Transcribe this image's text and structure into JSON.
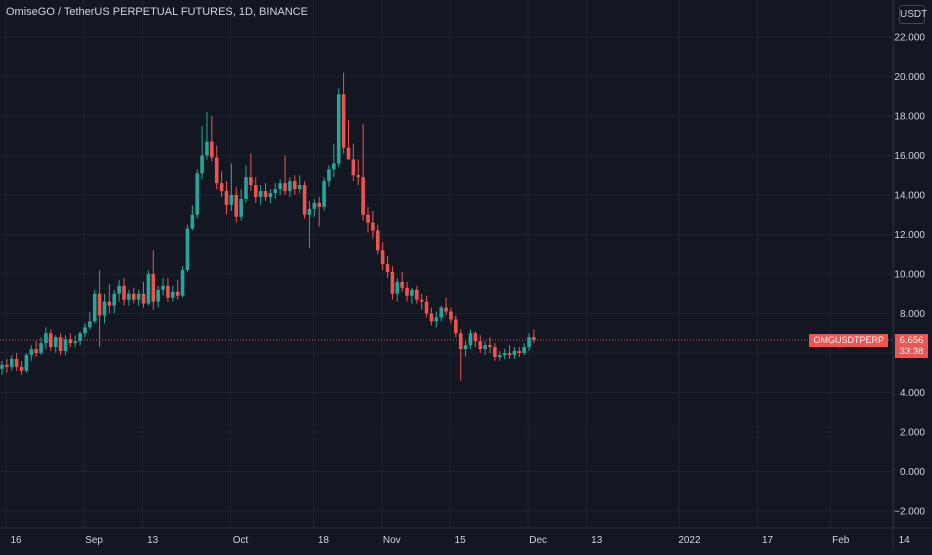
{
  "header": {
    "title": "OmiseGO / TetherUS PERPETUAL FUTURES, 1D, BINANCE",
    "currency": "USDT"
  },
  "price_tag": {
    "symbol": "OMGUSDTPERP",
    "last_price": "6.656",
    "countdown": "33:38"
  },
  "colors": {
    "background": "#131722",
    "grid": "#1f2330",
    "up": "#26a69a",
    "down": "#ef5350",
    "text": "#d1d4dc",
    "price_line": "#ef5350"
  },
  "chart_data": {
    "type": "candlestick",
    "title": "OmiseGO / TetherUS PERPETUAL FUTURES, 1D, BINANCE",
    "ylim": [
      -2.8,
      23.5
    ],
    "y_ticks": [
      22,
      20,
      18,
      16,
      14,
      12,
      10,
      8,
      6,
      4,
      2,
      0,
      -2
    ],
    "y_tick_labels": [
      "22.000",
      "20.000",
      "18.000",
      "16.000",
      "14.000",
      "12.000",
      "10.000",
      "8.000",
      "6.000",
      "4.000",
      "2.000",
      "0.000",
      "−2.000"
    ],
    "x_ticks": [
      {
        "label": "16",
        "day": 0
      },
      {
        "label": "Sep",
        "day": 16
      },
      {
        "label": "13",
        "day": 28
      },
      {
        "label": "Oct",
        "day": 46
      },
      {
        "label": "18",
        "day": 63
      },
      {
        "label": "Nov",
        "day": 77
      },
      {
        "label": "15",
        "day": 91
      },
      {
        "label": "Dec",
        "day": 107
      },
      {
        "label": "13",
        "day": 119
      },
      {
        "label": "2022",
        "day": 138
      },
      {
        "label": "17",
        "day": 154
      },
      {
        "label": "Feb",
        "day": 169
      },
      {
        "label": "14",
        "day": 182
      }
    ],
    "last_price": 6.656,
    "candles": [
      {
        "o": 5.2,
        "h": 5.6,
        "l": 4.9,
        "c": 5.4
      },
      {
        "o": 5.4,
        "h": 5.7,
        "l": 5.0,
        "c": 5.3
      },
      {
        "o": 5.3,
        "h": 5.9,
        "l": 5.1,
        "c": 5.7
      },
      {
        "o": 5.7,
        "h": 6.0,
        "l": 5.1,
        "c": 5.3
      },
      {
        "o": 5.3,
        "h": 5.6,
        "l": 4.9,
        "c": 5.1
      },
      {
        "o": 5.1,
        "h": 6.0,
        "l": 5.0,
        "c": 5.9
      },
      {
        "o": 5.9,
        "h": 6.4,
        "l": 5.6,
        "c": 6.2
      },
      {
        "o": 6.2,
        "h": 6.6,
        "l": 5.8,
        "c": 6.0
      },
      {
        "o": 6.0,
        "h": 6.8,
        "l": 5.9,
        "c": 6.5
      },
      {
        "o": 6.5,
        "h": 7.3,
        "l": 6.2,
        "c": 7.0
      },
      {
        "o": 7.0,
        "h": 7.2,
        "l": 6.1,
        "c": 6.3
      },
      {
        "o": 6.3,
        "h": 6.9,
        "l": 6.0,
        "c": 6.8
      },
      {
        "o": 6.8,
        "h": 7.0,
        "l": 5.9,
        "c": 6.1
      },
      {
        "o": 6.1,
        "h": 6.9,
        "l": 5.9,
        "c": 6.7
      },
      {
        "o": 6.7,
        "h": 7.0,
        "l": 6.3,
        "c": 6.5
      },
      {
        "o": 6.5,
        "h": 6.9,
        "l": 6.3,
        "c": 6.6
      },
      {
        "o": 6.6,
        "h": 7.1,
        "l": 6.4,
        "c": 7.0
      },
      {
        "o": 7.0,
        "h": 7.5,
        "l": 6.8,
        "c": 7.3
      },
      {
        "o": 7.3,
        "h": 8.1,
        "l": 7.2,
        "c": 7.6
      },
      {
        "o": 7.6,
        "h": 9.2,
        "l": 7.5,
        "c": 9.0
      },
      {
        "o": 9.0,
        "h": 10.2,
        "l": 6.3,
        "c": 7.9
      },
      {
        "o": 7.9,
        "h": 9.0,
        "l": 7.5,
        "c": 8.6
      },
      {
        "o": 8.6,
        "h": 9.5,
        "l": 8.0,
        "c": 8.4
      },
      {
        "o": 8.4,
        "h": 9.2,
        "l": 8.0,
        "c": 9.0
      },
      {
        "o": 9.0,
        "h": 9.7,
        "l": 8.6,
        "c": 9.4
      },
      {
        "o": 9.4,
        "h": 9.8,
        "l": 8.4,
        "c": 8.7
      },
      {
        "o": 8.7,
        "h": 9.2,
        "l": 8.4,
        "c": 9.0
      },
      {
        "o": 9.0,
        "h": 9.3,
        "l": 8.5,
        "c": 8.7
      },
      {
        "o": 8.7,
        "h": 9.2,
        "l": 8.4,
        "c": 9.0
      },
      {
        "o": 9.0,
        "h": 9.6,
        "l": 8.3,
        "c": 8.5
      },
      {
        "o": 8.5,
        "h": 10.2,
        "l": 8.4,
        "c": 10.0
      },
      {
        "o": 10.0,
        "h": 11.2,
        "l": 8.2,
        "c": 8.6
      },
      {
        "o": 8.6,
        "h": 9.4,
        "l": 8.3,
        "c": 9.2
      },
      {
        "o": 9.2,
        "h": 9.8,
        "l": 8.9,
        "c": 9.4
      },
      {
        "o": 9.4,
        "h": 9.8,
        "l": 8.6,
        "c": 8.8
      },
      {
        "o": 8.8,
        "h": 9.4,
        "l": 8.6,
        "c": 9.1
      },
      {
        "o": 9.1,
        "h": 9.7,
        "l": 8.7,
        "c": 8.9
      },
      {
        "o": 8.9,
        "h": 10.4,
        "l": 8.8,
        "c": 10.2
      },
      {
        "o": 10.2,
        "h": 12.5,
        "l": 10.1,
        "c": 12.3
      },
      {
        "o": 12.3,
        "h": 13.5,
        "l": 12.2,
        "c": 13.0
      },
      {
        "o": 13.0,
        "h": 15.3,
        "l": 12.8,
        "c": 15.1
      },
      {
        "o": 15.1,
        "h": 17.5,
        "l": 14.8,
        "c": 16.0
      },
      {
        "o": 16.0,
        "h": 18.2,
        "l": 15.8,
        "c": 16.7
      },
      {
        "o": 16.7,
        "h": 18.0,
        "l": 15.7,
        "c": 15.9
      },
      {
        "o": 15.9,
        "h": 16.5,
        "l": 14.3,
        "c": 14.6
      },
      {
        "o": 14.6,
        "h": 15.2,
        "l": 13.9,
        "c": 14.2
      },
      {
        "o": 14.2,
        "h": 14.7,
        "l": 13.0,
        "c": 13.5
      },
      {
        "o": 13.5,
        "h": 15.6,
        "l": 13.2,
        "c": 14.0
      },
      {
        "o": 14.0,
        "h": 14.4,
        "l": 12.6,
        "c": 12.9
      },
      {
        "o": 12.9,
        "h": 14.3,
        "l": 12.7,
        "c": 13.8
      },
      {
        "o": 13.8,
        "h": 15.5,
        "l": 13.6,
        "c": 14.9
      },
      {
        "o": 14.9,
        "h": 16.1,
        "l": 14.2,
        "c": 14.5
      },
      {
        "o": 14.5,
        "h": 14.9,
        "l": 13.6,
        "c": 13.9
      },
      {
        "o": 13.9,
        "h": 14.5,
        "l": 13.5,
        "c": 14.2
      },
      {
        "o": 14.2,
        "h": 14.6,
        "l": 13.7,
        "c": 13.9
      },
      {
        "o": 13.9,
        "h": 14.3,
        "l": 13.6,
        "c": 14.1
      },
      {
        "o": 14.1,
        "h": 14.6,
        "l": 13.8,
        "c": 14.3
      },
      {
        "o": 14.3,
        "h": 14.8,
        "l": 14.0,
        "c": 14.6
      },
      {
        "o": 14.6,
        "h": 16.0,
        "l": 14.0,
        "c": 14.2
      },
      {
        "o": 14.2,
        "h": 14.9,
        "l": 13.9,
        "c": 14.7
      },
      {
        "o": 14.7,
        "h": 15.0,
        "l": 14.0,
        "c": 14.3
      },
      {
        "o": 14.3,
        "h": 15.0,
        "l": 14.1,
        "c": 14.5
      },
      {
        "o": 14.5,
        "h": 14.7,
        "l": 12.8,
        "c": 13.0
      },
      {
        "o": 13.0,
        "h": 13.7,
        "l": 11.3,
        "c": 13.3
      },
      {
        "o": 13.3,
        "h": 13.8,
        "l": 12.9,
        "c": 13.6
      },
      {
        "o": 13.6,
        "h": 13.9,
        "l": 12.4,
        "c": 13.4
      },
      {
        "o": 13.4,
        "h": 14.9,
        "l": 13.2,
        "c": 14.7
      },
      {
        "o": 14.7,
        "h": 15.5,
        "l": 14.4,
        "c": 15.3
      },
      {
        "o": 15.3,
        "h": 16.6,
        "l": 14.9,
        "c": 15.6
      },
      {
        "o": 15.6,
        "h": 19.4,
        "l": 15.4,
        "c": 19.1
      },
      {
        "o": 19.1,
        "h": 20.2,
        "l": 16.1,
        "c": 16.4
      },
      {
        "o": 16.4,
        "h": 17.8,
        "l": 15.9,
        "c": 15.8
      },
      {
        "o": 15.8,
        "h": 16.6,
        "l": 14.7,
        "c": 15.0
      },
      {
        "o": 15.0,
        "h": 15.8,
        "l": 14.5,
        "c": 14.9
      },
      {
        "o": 14.9,
        "h": 17.6,
        "l": 12.7,
        "c": 13.0
      },
      {
        "o": 13.0,
        "h": 13.4,
        "l": 12.1,
        "c": 12.6
      },
      {
        "o": 12.6,
        "h": 13.2,
        "l": 11.8,
        "c": 12.2
      },
      {
        "o": 12.2,
        "h": 12.5,
        "l": 11.0,
        "c": 11.2
      },
      {
        "o": 11.2,
        "h": 11.6,
        "l": 10.2,
        "c": 10.5
      },
      {
        "o": 10.5,
        "h": 10.9,
        "l": 9.8,
        "c": 10.1
      },
      {
        "o": 10.1,
        "h": 10.4,
        "l": 8.7,
        "c": 9.0
      },
      {
        "o": 9.0,
        "h": 9.8,
        "l": 8.6,
        "c": 9.6
      },
      {
        "o": 9.6,
        "h": 10.1,
        "l": 9.1,
        "c": 9.3
      },
      {
        "o": 9.3,
        "h": 9.6,
        "l": 8.6,
        "c": 8.9
      },
      {
        "o": 8.9,
        "h": 9.3,
        "l": 8.5,
        "c": 9.2
      },
      {
        "o": 9.2,
        "h": 9.4,
        "l": 8.5,
        "c": 8.7
      },
      {
        "o": 8.7,
        "h": 9.0,
        "l": 8.2,
        "c": 8.6
      },
      {
        "o": 8.6,
        "h": 8.9,
        "l": 7.8,
        "c": 8.0
      },
      {
        "o": 8.0,
        "h": 8.3,
        "l": 7.4,
        "c": 7.6
      },
      {
        "o": 7.6,
        "h": 8.1,
        "l": 7.3,
        "c": 7.8
      },
      {
        "o": 7.8,
        "h": 8.4,
        "l": 7.6,
        "c": 8.3
      },
      {
        "o": 8.3,
        "h": 8.8,
        "l": 7.9,
        "c": 8.1
      },
      {
        "o": 8.1,
        "h": 8.3,
        "l": 7.5,
        "c": 7.7
      },
      {
        "o": 7.7,
        "h": 7.9,
        "l": 6.8,
        "c": 7.0
      },
      {
        "o": 7.0,
        "h": 7.2,
        "l": 4.6,
        "c": 6.2
      },
      {
        "o": 6.2,
        "h": 6.6,
        "l": 5.8,
        "c": 6.4
      },
      {
        "o": 6.4,
        "h": 7.2,
        "l": 6.2,
        "c": 7.0
      },
      {
        "o": 7.0,
        "h": 7.1,
        "l": 6.3,
        "c": 6.6
      },
      {
        "o": 6.6,
        "h": 6.9,
        "l": 6.0,
        "c": 6.2
      },
      {
        "o": 6.2,
        "h": 6.6,
        "l": 5.9,
        "c": 6.4
      },
      {
        "o": 6.4,
        "h": 6.8,
        "l": 6.0,
        "c": 6.3
      },
      {
        "o": 6.3,
        "h": 6.5,
        "l": 5.6,
        "c": 5.8
      },
      {
        "o": 5.8,
        "h": 6.1,
        "l": 5.6,
        "c": 5.9
      },
      {
        "o": 5.9,
        "h": 6.2,
        "l": 5.7,
        "c": 6.0
      },
      {
        "o": 6.0,
        "h": 6.4,
        "l": 5.7,
        "c": 5.9
      },
      {
        "o": 5.9,
        "h": 6.3,
        "l": 5.7,
        "c": 6.1
      },
      {
        "o": 6.1,
        "h": 6.3,
        "l": 5.8,
        "c": 6.0
      },
      {
        "o": 6.0,
        "h": 6.5,
        "l": 5.9,
        "c": 6.3
      },
      {
        "o": 6.3,
        "h": 7.0,
        "l": 6.1,
        "c": 6.8
      },
      {
        "o": 6.8,
        "h": 7.2,
        "l": 6.5,
        "c": 6.66
      }
    ]
  }
}
